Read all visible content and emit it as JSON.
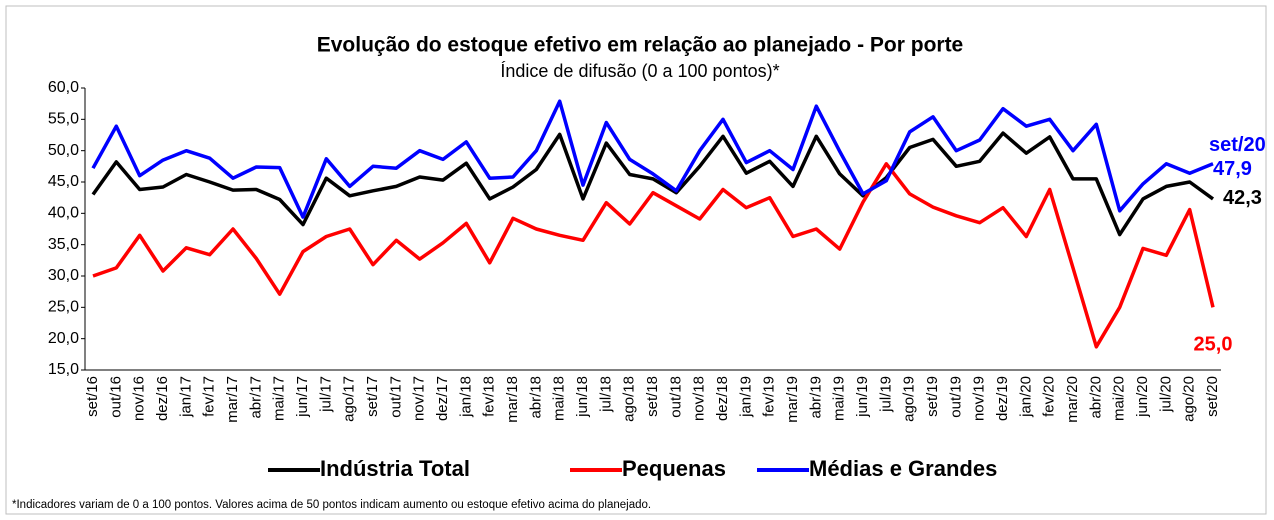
{
  "chart_data": {
    "type": "line",
    "title": "Evolução do estoque efetivo em relação ao planejado - Por porte",
    "subtitle": "Índice de difusão (0 a 100 pontos)*",
    "footnote": "*Indicadores variam de 0 a 100 pontos. Valores acima de 50 pontos indicam aumento ou estoque efetivo acima do planejado.",
    "categories": [
      "set/16",
      "out/16",
      "nov/16",
      "dez/16",
      "jan/17",
      "fev/17",
      "mar/17",
      "abr/17",
      "mai/17",
      "jun/17",
      "jul/17",
      "ago/17",
      "set/17",
      "out/17",
      "nov/17",
      "dez/17",
      "jan/18",
      "fev/18",
      "mar/18",
      "abr/18",
      "mai/18",
      "jun/18",
      "jul/18",
      "ago/18",
      "set/18",
      "out/18",
      "nov/18",
      "dez/18",
      "jan/19",
      "fev/19",
      "mar/19",
      "abr/19",
      "mai/19",
      "jun/19",
      "jul/19",
      "ago/19",
      "set/19",
      "out/19",
      "nov/19",
      "dez/19",
      "jan/20",
      "fev/20",
      "mar/20",
      "abr/20",
      "mai/20",
      "jun/20",
      "jul/20",
      "ago/20",
      "set/20"
    ],
    "series": [
      {
        "name": "Indústria Total",
        "color": "#000000",
        "values": [
          43.0,
          48.2,
          43.8,
          44.2,
          46.2,
          45.0,
          43.7,
          43.8,
          42.2,
          38.2,
          45.6,
          42.8,
          43.6,
          44.3,
          45.8,
          45.3,
          48.0,
          42.3,
          44.2,
          47.0,
          52.6,
          42.3,
          51.2,
          46.2,
          45.5,
          43.3,
          47.5,
          52.3,
          46.4,
          48.3,
          44.3,
          52.3,
          46.3,
          42.8,
          45.7,
          50.5,
          51.8,
          47.5,
          48.3,
          52.8,
          49.6,
          52.2,
          45.5,
          45.5,
          36.6,
          42.3,
          44.3,
          45.0,
          42.3
        ],
        "value_labels": [
          null,
          null,
          null,
          null,
          null,
          null,
          null,
          null,
          null,
          null,
          null,
          null,
          null,
          null,
          null,
          null,
          null,
          null,
          null,
          null,
          null,
          null,
          null,
          null,
          null,
          null,
          null,
          null,
          null,
          null,
          null,
          null,
          null,
          null,
          null,
          null,
          null,
          null,
          null,
          null,
          null,
          null,
          null,
          null,
          null,
          null,
          null,
          null,
          "42,3"
        ]
      },
      {
        "name": "Pequenas",
        "color": "#ff0000",
        "values": [
          30.0,
          31.3,
          36.5,
          30.8,
          34.5,
          33.4,
          37.5,
          32.8,
          27.1,
          33.9,
          36.3,
          37.5,
          31.8,
          35.7,
          32.7,
          35.3,
          38.4,
          32.1,
          39.2,
          37.5,
          36.5,
          35.7,
          41.7,
          38.3,
          43.3,
          41.2,
          39.1,
          43.8,
          40.9,
          42.5,
          36.3,
          37.5,
          34.3,
          41.8,
          47.9,
          43.1,
          41.0,
          39.6,
          38.5,
          40.9,
          36.3,
          43.8,
          31.3,
          18.7,
          25.0,
          34.4,
          33.3,
          40.6,
          25.0
        ],
        "value_labels": [
          null,
          null,
          null,
          null,
          null,
          null,
          null,
          null,
          null,
          null,
          null,
          null,
          null,
          null,
          null,
          null,
          null,
          null,
          null,
          null,
          null,
          null,
          null,
          null,
          null,
          null,
          null,
          null,
          null,
          null,
          null,
          null,
          null,
          null,
          null,
          null,
          null,
          null,
          null,
          null,
          null,
          null,
          null,
          null,
          null,
          null,
          null,
          null,
          "25,0"
        ]
      },
      {
        "name": "Médias e Grandes",
        "color": "#0000ff",
        "values": [
          47.2,
          53.9,
          46.0,
          48.5,
          50.0,
          48.8,
          45.6,
          47.4,
          47.3,
          39.4,
          48.7,
          44.3,
          47.5,
          47.2,
          50.0,
          48.6,
          51.4,
          45.6,
          45.8,
          50.0,
          57.9,
          44.5,
          54.5,
          48.6,
          46.3,
          43.6,
          50.0,
          55.0,
          48.1,
          50.0,
          47.0,
          57.1,
          49.9,
          43.1,
          45.2,
          53.0,
          55.4,
          50.0,
          51.7,
          56.7,
          53.9,
          55.0,
          50.0,
          54.2,
          40.4,
          44.7,
          47.9,
          46.4,
          47.9
        ],
        "value_labels": [
          null,
          null,
          null,
          null,
          null,
          null,
          null,
          null,
          null,
          null,
          null,
          null,
          null,
          null,
          null,
          null,
          null,
          null,
          null,
          null,
          null,
          null,
          null,
          null,
          null,
          null,
          null,
          null,
          null,
          null,
          null,
          null,
          null,
          null,
          null,
          null,
          null,
          null,
          null,
          null,
          null,
          null,
          null,
          null,
          null,
          null,
          null,
          null,
          "47,9"
        ]
      }
    ],
    "ylim": [
      15,
      60
    ],
    "yticks": [
      {
        "value": 15,
        "label": "15,0"
      },
      {
        "value": 20,
        "label": "20,0"
      },
      {
        "value": 25,
        "label": "25,0"
      },
      {
        "value": 30,
        "label": "30,0"
      },
      {
        "value": 35,
        "label": "35,0"
      },
      {
        "value": 40,
        "label": "40,0"
      },
      {
        "value": 45,
        "label": "45,0"
      },
      {
        "value": 50,
        "label": "50,0"
      },
      {
        "value": 55,
        "label": "55,0"
      },
      {
        "value": 60,
        "label": "60,0"
      }
    ],
    "grid": false,
    "legend": "bottom"
  }
}
